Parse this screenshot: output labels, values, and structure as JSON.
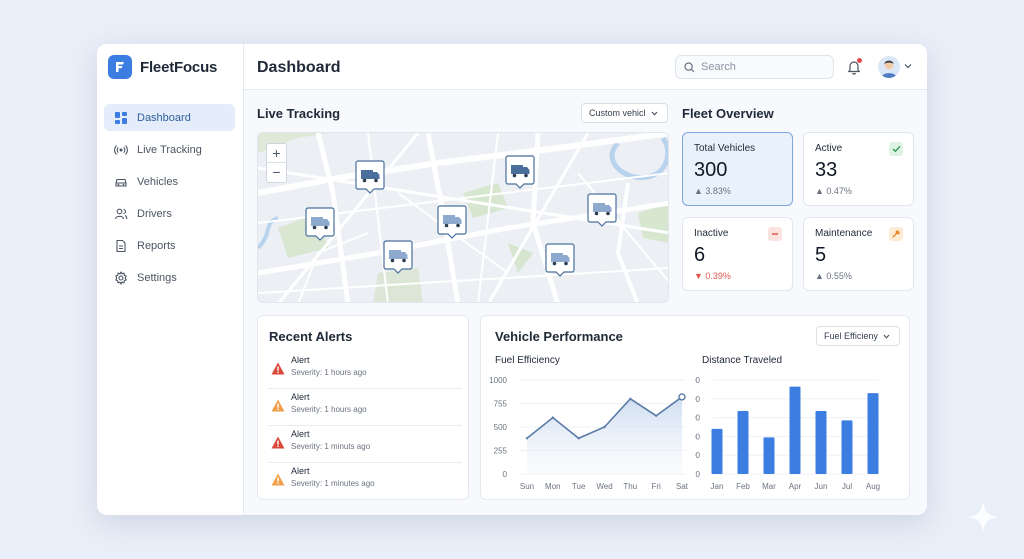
{
  "app": {
    "name": "FleetFocus"
  },
  "sidebar": {
    "items": [
      {
        "label": "Dashboard",
        "icon": "grid-icon",
        "active": true
      },
      {
        "label": "Live Tracking",
        "icon": "signal-icon"
      },
      {
        "label": "Vehicles",
        "icon": "car-icon"
      },
      {
        "label": "Drivers",
        "icon": "users-icon"
      },
      {
        "label": "Reports",
        "icon": "file-icon"
      },
      {
        "label": "Settings",
        "icon": "gear-icon"
      }
    ]
  },
  "header": {
    "title": "Dashboard",
    "search_placeholder": "Search"
  },
  "live_tracking": {
    "title": "Live Tracking",
    "select_value": "Custom vehicl",
    "zoom_in": "+",
    "zoom_out": "−"
  },
  "fleet_overview": {
    "title": "Fleet Overview",
    "stats": [
      {
        "label": "Total Vehicles",
        "value": "300",
        "change": "▲ 3.83%",
        "direction": "up"
      },
      {
        "label": "Active",
        "value": "33",
        "change": "▲ 0.47%",
        "direction": "up",
        "badge": "check-icon",
        "badge_color": "#dff3e4"
      },
      {
        "label": "Inactive",
        "value": "6",
        "change": "▼ 0.39%",
        "direction": "down",
        "badge": "minus-icon",
        "badge_color": "#fde3df"
      },
      {
        "label": "Maintenance",
        "value": "5",
        "change": "▲ 0.55%",
        "direction": "up",
        "badge": "wrench-icon",
        "badge_color": "#fdebd5"
      }
    ]
  },
  "alerts": {
    "title": "Recent Alerts",
    "items": [
      {
        "title": "Alert",
        "severity": "Severity: 1 hours ago",
        "level": "red"
      },
      {
        "title": "Alert",
        "severity": "Severity: 1 hours ago",
        "level": "orange"
      },
      {
        "title": "Alert",
        "severity": "Severity: 1 minuts ago",
        "level": "red"
      },
      {
        "title": "Alert",
        "severity": "Severity: 1 minutes ago",
        "level": "orange"
      }
    ]
  },
  "performance": {
    "title": "Vehicle Performance",
    "select_value": "Fuel Efficieny"
  },
  "colors": {
    "accent": "#3b7de0",
    "bar": "#3b7de0",
    "line": "#5a7da8",
    "alert_red": "#d9483b",
    "alert_orange": "#f0a04b"
  },
  "chart_data": [
    {
      "type": "area",
      "title": "Fuel Efficiency",
      "categories": [
        "Sun",
        "Mon",
        "Tue",
        "Wed",
        "Thu",
        "Fri",
        "Sat"
      ],
      "values": [
        380,
        600,
        380,
        500,
        800,
        620,
        820
      ],
      "yticks": [
        "1000",
        "755",
        "500",
        "255",
        "0"
      ],
      "ylim": [
        0,
        1000
      ]
    },
    {
      "type": "bar",
      "title": "Distance Traveled",
      "categories": [
        "Jan",
        "Feb",
        "Mar",
        "Apr",
        "Jun",
        "Jul",
        "Aug"
      ],
      "values": [
        240,
        335,
        195,
        465,
        335,
        285,
        430
      ],
      "yticks": [
        "500",
        "400",
        "300",
        "200",
        "100",
        "0"
      ],
      "ylim": [
        0,
        500
      ]
    }
  ]
}
